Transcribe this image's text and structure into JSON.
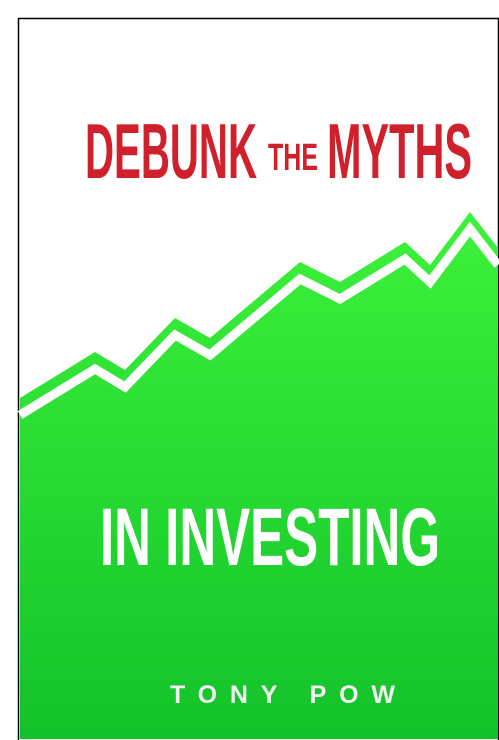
{
  "cover": {
    "title_start": "DEBUNK",
    "title_small": "THE",
    "title_end": "MYTHS",
    "subtitle": "IN INVESTING",
    "author": "TONY POW"
  }
}
